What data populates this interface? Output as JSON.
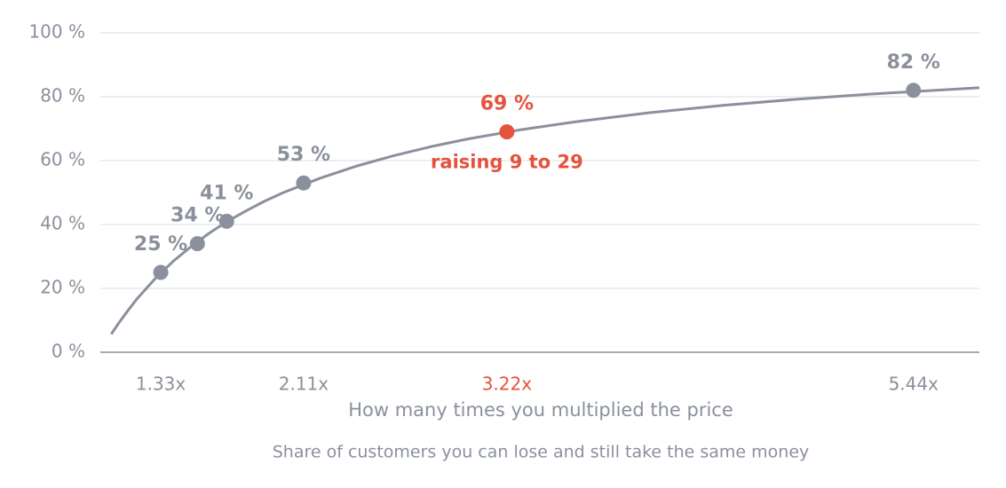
{
  "chart_data": {
    "type": "line",
    "xlabel": "How many times you multiplied the price",
    "caption": "Share of customers you can lose and still take the same money",
    "xlim": [
      1,
      5.8
    ],
    "ylim": [
      0,
      100
    ],
    "yticks": [
      {
        "value": 0,
        "label": "0 %"
      },
      {
        "value": 20,
        "label": "20 %"
      },
      {
        "value": 40,
        "label": "40 %"
      },
      {
        "value": 60,
        "label": "60 %"
      },
      {
        "value": 80,
        "label": "80 %"
      },
      {
        "value": 100,
        "label": "100 %"
      }
    ],
    "xticks": [
      {
        "value": 1.33,
        "label": "1.33x"
      },
      {
        "value": 2.11,
        "label": "2.11x"
      },
      {
        "value": 3.22,
        "label": "3.22x"
      },
      {
        "value": 5.44,
        "label": "5.44x"
      }
    ],
    "xtick_colors": [
      "#8a909c",
      "#8a909c",
      "#e5533d",
      "#8a909c"
    ],
    "grid": true,
    "series": [
      {
        "color": "#8a909c",
        "x": [
          1.06,
          1.1,
          1.15,
          1.2,
          1.3,
          1.4,
          1.5,
          1.6,
          1.7,
          1.8,
          1.9,
          2,
          2.2,
          2.4,
          2.6,
          2.8,
          3,
          3.3,
          3.6,
          4,
          4.4,
          4.8,
          5.2,
          5.5,
          5.8
        ],
        "values": [
          5.7,
          9.1,
          13,
          16.7,
          23.1,
          28.6,
          33.3,
          37.5,
          41.2,
          44.4,
          47.4,
          50,
          54.5,
          58.3,
          61.5,
          64.3,
          66.7,
          69.7,
          72.2,
          75,
          77.3,
          79.2,
          80.8,
          81.8,
          82.8
        ]
      }
    ],
    "points": {
      "x": [
        1.33,
        1.53,
        1.69,
        2.11,
        3.22,
        5.44
      ],
      "values": [
        25,
        34,
        41,
        53,
        69,
        82
      ],
      "value_labels": [
        "25 %",
        "34 %",
        "41 %",
        "53 %",
        "69 %",
        "82 %"
      ],
      "colors": [
        "#8a909c",
        "#8a909c",
        "#8a909c",
        "#8a909c",
        "#e5533d",
        "#8a909c"
      ]
    },
    "annotation": {
      "text": "raising 9 to 29",
      "color": "#e5533d"
    }
  }
}
